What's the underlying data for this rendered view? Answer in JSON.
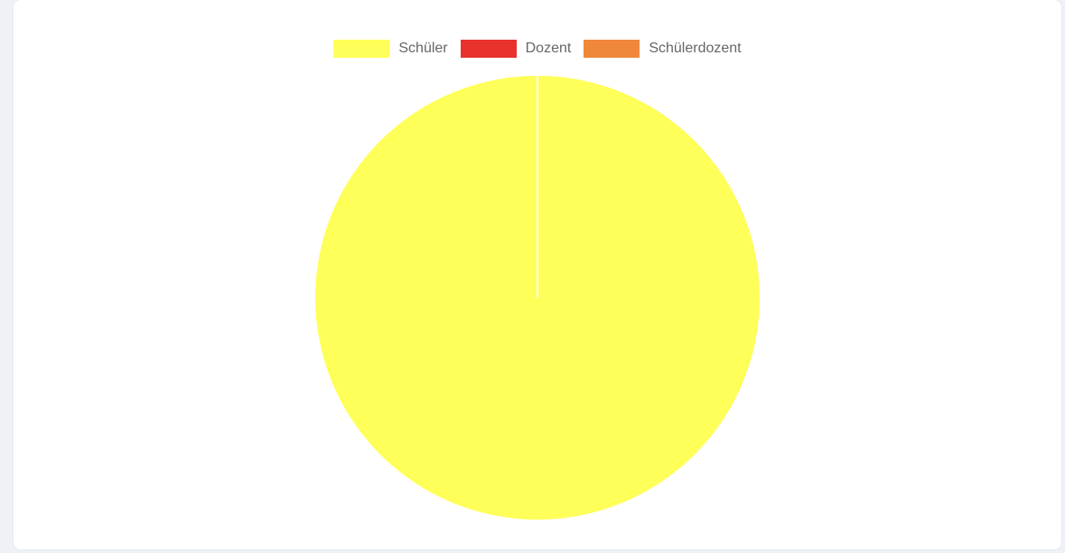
{
  "chart_data": {
    "type": "pie",
    "title": "",
    "categories": [
      "Schüler",
      "Dozent",
      "Schülerdozent"
    ],
    "values": [
      100,
      0,
      0
    ],
    "colors": [
      "#ffff5a",
      "#e8322b",
      "#f0883c"
    ],
    "legend_position": "top"
  },
  "legend": {
    "items": [
      {
        "label": "Schüler",
        "color": "#ffff5a"
      },
      {
        "label": "Dozent",
        "color": "#e8322b"
      },
      {
        "label": "Schülerdozent",
        "color": "#f0883c"
      }
    ]
  }
}
